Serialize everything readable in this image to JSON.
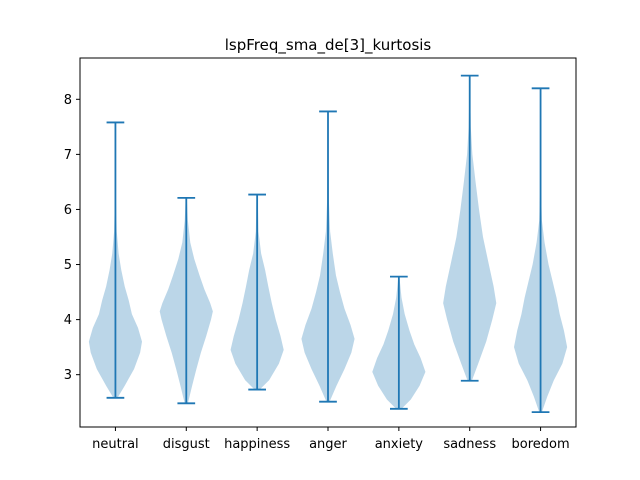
{
  "chart_data": {
    "type": "violin",
    "title": "lspFreq_sma_de[3]_kurtosis",
    "xlabel": "",
    "ylabel": "",
    "ylim": [
      2.05,
      8.75
    ],
    "yticks": [
      3,
      4,
      5,
      6,
      7,
      8
    ],
    "categories": [
      "neutral",
      "disgust",
      "happiness",
      "anger",
      "anxiety",
      "sadness",
      "boredom"
    ],
    "series": [
      {
        "category": "neutral",
        "min": 2.58,
        "max": 7.58,
        "density": [
          [
            2.58,
            0.08
          ],
          [
            2.8,
            0.35
          ],
          [
            3.1,
            0.7
          ],
          [
            3.4,
            0.93
          ],
          [
            3.6,
            1.0
          ],
          [
            3.85,
            0.85
          ],
          [
            4.1,
            0.62
          ],
          [
            4.35,
            0.5
          ],
          [
            4.6,
            0.35
          ],
          [
            4.9,
            0.22
          ],
          [
            5.2,
            0.12
          ],
          [
            5.6,
            0.05
          ],
          [
            6.2,
            0.02
          ],
          [
            7.58,
            0.01
          ]
        ]
      },
      {
        "category": "disgust",
        "min": 2.48,
        "max": 6.21,
        "density": [
          [
            2.48,
            0.06
          ],
          [
            2.8,
            0.22
          ],
          [
            3.1,
            0.38
          ],
          [
            3.4,
            0.55
          ],
          [
            3.7,
            0.75
          ],
          [
            4.0,
            0.93
          ],
          [
            4.15,
            1.0
          ],
          [
            4.3,
            0.9
          ],
          [
            4.55,
            0.68
          ],
          [
            4.8,
            0.5
          ],
          [
            5.1,
            0.3
          ],
          [
            5.4,
            0.15
          ],
          [
            5.8,
            0.06
          ],
          [
            6.21,
            0.02
          ]
        ]
      },
      {
        "category": "happiness",
        "min": 2.73,
        "max": 6.27,
        "density": [
          [
            2.73,
            0.1
          ],
          [
            2.9,
            0.45
          ],
          [
            3.2,
            0.82
          ],
          [
            3.45,
            1.0
          ],
          [
            3.7,
            0.88
          ],
          [
            4.0,
            0.7
          ],
          [
            4.3,
            0.55
          ],
          [
            4.6,
            0.42
          ],
          [
            4.9,
            0.3
          ],
          [
            5.2,
            0.15
          ],
          [
            5.6,
            0.05
          ],
          [
            6.27,
            0.02
          ]
        ]
      },
      {
        "category": "anger",
        "min": 2.51,
        "max": 7.78,
        "density": [
          [
            2.51,
            0.06
          ],
          [
            2.8,
            0.32
          ],
          [
            3.1,
            0.62
          ],
          [
            3.4,
            0.88
          ],
          [
            3.65,
            1.0
          ],
          [
            3.9,
            0.85
          ],
          [
            4.2,
            0.62
          ],
          [
            4.5,
            0.45
          ],
          [
            4.8,
            0.3
          ],
          [
            5.2,
            0.18
          ],
          [
            5.6,
            0.08
          ],
          [
            6.2,
            0.03
          ],
          [
            7.0,
            0.01
          ],
          [
            7.78,
            0.005
          ]
        ]
      },
      {
        "category": "anxiety",
        "min": 2.38,
        "max": 4.78,
        "density": [
          [
            2.38,
            0.1
          ],
          [
            2.55,
            0.45
          ],
          [
            2.8,
            0.78
          ],
          [
            3.05,
            1.0
          ],
          [
            3.3,
            0.82
          ],
          [
            3.55,
            0.58
          ],
          [
            3.8,
            0.4
          ],
          [
            4.1,
            0.22
          ],
          [
            4.4,
            0.1
          ],
          [
            4.78,
            0.02
          ]
        ]
      },
      {
        "category": "sadness",
        "min": 2.89,
        "max": 8.43,
        "density": [
          [
            2.89,
            0.08
          ],
          [
            3.2,
            0.32
          ],
          [
            3.6,
            0.62
          ],
          [
            4.0,
            0.85
          ],
          [
            4.3,
            1.0
          ],
          [
            4.6,
            0.9
          ],
          [
            5.0,
            0.72
          ],
          [
            5.5,
            0.5
          ],
          [
            6.0,
            0.35
          ],
          [
            6.5,
            0.22
          ],
          [
            7.0,
            0.1
          ],
          [
            7.5,
            0.04
          ],
          [
            8.0,
            0.02
          ],
          [
            8.43,
            0.005
          ]
        ]
      },
      {
        "category": "boredom",
        "min": 2.32,
        "max": 8.2,
        "density": [
          [
            2.32,
            0.05
          ],
          [
            2.6,
            0.25
          ],
          [
            2.9,
            0.5
          ],
          [
            3.2,
            0.82
          ],
          [
            3.5,
            1.0
          ],
          [
            3.8,
            0.88
          ],
          [
            4.1,
            0.72
          ],
          [
            4.4,
            0.6
          ],
          [
            4.7,
            0.45
          ],
          [
            5.0,
            0.3
          ],
          [
            5.4,
            0.15
          ],
          [
            5.8,
            0.05
          ],
          [
            6.3,
            0.02
          ],
          [
            8.2,
            0.005
          ]
        ]
      }
    ],
    "colors": {
      "body": "#1f77b4",
      "body_alpha": 0.3,
      "lines": "#1f77b4"
    },
    "grid": false,
    "legend": "none"
  }
}
